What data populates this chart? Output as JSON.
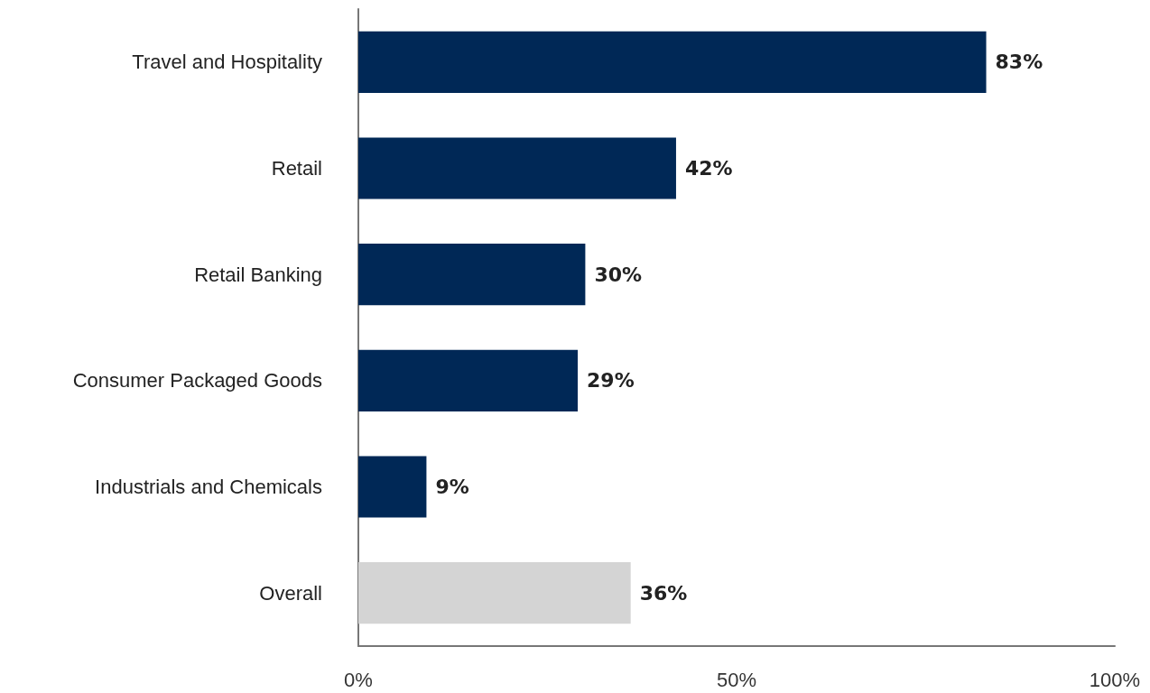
{
  "chart_data": {
    "type": "bar",
    "orientation": "horizontal",
    "categories": [
      "Travel and Hospitality",
      "Retail",
      "Retail Banking",
      "Consumer Packaged Goods",
      "Industrials and Chemicals",
      "Overall"
    ],
    "values": [
      83,
      42,
      30,
      29,
      9,
      36
    ],
    "colors": [
      "#002856",
      "#002856",
      "#002856",
      "#002856",
      "#002856",
      "#d4d4d4"
    ],
    "value_labels": [
      "83%",
      "42%",
      "30%",
      "29%",
      "9%",
      "36%"
    ],
    "xlim": [
      0,
      100
    ],
    "xticks": [
      {
        "value": 0,
        "label": "0%"
      },
      {
        "value": 50,
        "label": "50%"
      },
      {
        "value": 100,
        "label": "100%"
      }
    ]
  }
}
